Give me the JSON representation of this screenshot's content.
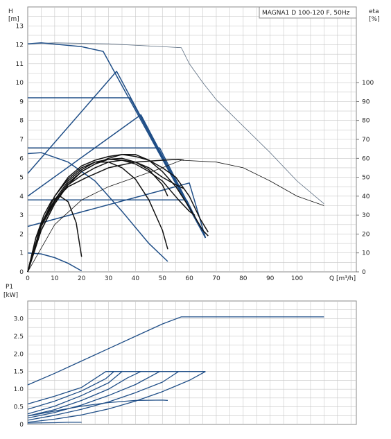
{
  "chart_data": [
    {
      "type": "line",
      "panel": "pump-curves",
      "title": "MAGNA1 D 100-120 F, 50Hz",
      "xlabel": "Q [m³/h]",
      "ylabel_line1": "H",
      "ylabel_line2": "[m]",
      "y2label_line1": "eta",
      "y2label_line2": "[%]",
      "xlim": [
        0,
        122
      ],
      "ylim": [
        0,
        14
      ],
      "y2lim": [
        0,
        140
      ],
      "xticks": [
        0,
        10,
        20,
        30,
        40,
        50,
        60,
        70,
        80,
        90,
        100
      ],
      "yticks": [
        0,
        1,
        2,
        3,
        4,
        5,
        6,
        7,
        8,
        9,
        10,
        11,
        12,
        13
      ],
      "y2ticks": [
        0,
        10,
        20,
        30,
        40,
        50,
        60,
        70,
        80,
        90,
        100
      ],
      "grid": true,
      "colors": {
        "head": "#1f4e87",
        "eta": "#111111",
        "twin": "#5a6c80",
        "grid": "#c8c8c8"
      },
      "head_curves": [
        {
          "points": [
            [
              0,
              12.05
            ],
            [
              5,
              12.1
            ],
            [
              20,
              11.9
            ],
            [
              28,
              11.65
            ],
            [
              66,
              1.8
            ]
          ]
        },
        {
          "points": [
            [
              0,
              9.2
            ],
            [
              38,
              9.2
            ],
            [
              66,
              1.8
            ]
          ]
        },
        {
          "points": [
            [
              0,
              6.55
            ],
            [
              49,
              6.55
            ],
            [
              66,
              1.8
            ]
          ]
        },
        {
          "points": [
            [
              0,
              3.8
            ],
            [
              59,
              3.8
            ],
            [
              66,
              1.8
            ]
          ]
        },
        {
          "points": [
            [
              0,
              5.2
            ],
            [
              33,
              10.6
            ],
            [
              66,
              1.8
            ]
          ]
        },
        {
          "points": [
            [
              0,
              4.0
            ],
            [
              42,
              8.3
            ],
            [
              66,
              1.8
            ]
          ]
        },
        {
          "points": [
            [
              0,
              2.4
            ],
            [
              60,
              4.7
            ],
            [
              66,
              1.8
            ]
          ]
        },
        {
          "points": [
            [
              0,
              6.25
            ],
            [
              5,
              6.3
            ],
            [
              15,
              5.8
            ],
            [
              25,
              4.8
            ],
            [
              35,
              3.2
            ],
            [
              45,
              1.5
            ],
            [
              52,
              0.55
            ]
          ]
        },
        {
          "points": [
            [
              0,
              1.0
            ],
            [
              5,
              0.95
            ],
            [
              10,
              0.75
            ],
            [
              15,
              0.45
            ],
            [
              20,
              0.05
            ]
          ]
        }
      ],
      "eta_curves": [
        {
          "points": [
            [
              0,
              0
            ],
            [
              3,
              18
            ],
            [
              6,
              28
            ],
            [
              10,
              38
            ],
            [
              15,
              45
            ],
            [
              22,
              50
            ],
            [
              30,
              55
            ],
            [
              40,
              58
            ],
            [
              50,
              59
            ],
            [
              56,
              59.5
            ],
            [
              58,
              59
            ]
          ]
        },
        {
          "points": [
            [
              0,
              0
            ],
            [
              5,
              25
            ],
            [
              10,
              40
            ],
            [
              15,
              50
            ],
            [
              20,
              56
            ],
            [
              25,
              59
            ],
            [
              30,
              61
            ],
            [
              35,
              62
            ],
            [
              40,
              61
            ],
            [
              45,
              59
            ],
            [
              50,
              55
            ],
            [
              55,
              50
            ],
            [
              60,
              40
            ],
            [
              64,
              28
            ],
            [
              67,
              21
            ]
          ]
        },
        {
          "points": [
            [
              0,
              0
            ],
            [
              5,
              22
            ],
            [
              10,
              36
            ],
            [
              15,
              46
            ],
            [
              20,
              53
            ],
            [
              25,
              57
            ],
            [
              30,
              60
            ],
            [
              35,
              62
            ],
            [
              40,
              62
            ],
            [
              45,
              59
            ],
            [
              50,
              53
            ],
            [
              55,
              45
            ],
            [
              60,
              34
            ],
            [
              65,
              22
            ],
            [
              67,
              19
            ]
          ]
        },
        {
          "points": [
            [
              0,
              0
            ],
            [
              5,
              24
            ],
            [
              10,
              38
            ],
            [
              15,
              48
            ],
            [
              20,
              54
            ],
            [
              25,
              58
            ],
            [
              30,
              59.5
            ],
            [
              35,
              59
            ],
            [
              40,
              57
            ],
            [
              45,
              53
            ],
            [
              50,
              48
            ],
            [
              53,
              43
            ],
            [
              56,
              38
            ],
            [
              60,
              32
            ],
            [
              62,
              30
            ]
          ]
        },
        {
          "points": [
            [
              0,
              0
            ],
            [
              5,
              22
            ],
            [
              10,
              36
            ],
            [
              15,
              46
            ],
            [
              20,
              51
            ],
            [
              25,
              55
            ],
            [
              30,
              58
            ],
            [
              35,
              59
            ],
            [
              40,
              58
            ],
            [
              45,
              55
            ],
            [
              50,
              50
            ],
            [
              55,
              46
            ],
            [
              58,
              44
            ]
          ]
        },
        {
          "points": [
            [
              0,
              0
            ],
            [
              5,
              24
            ],
            [
              10,
              37
            ],
            [
              15,
              47
            ],
            [
              20,
              53
            ],
            [
              25,
              57
            ],
            [
              30,
              59.5
            ],
            [
              35,
              60
            ],
            [
              40,
              58
            ],
            [
              45,
              54
            ],
            [
              50,
              46
            ],
            [
              52,
              40
            ]
          ]
        },
        {
          "points": [
            [
              0,
              0
            ],
            [
              5,
              25
            ],
            [
              10,
              40
            ],
            [
              15,
              49
            ],
            [
              20,
              55
            ],
            [
              25,
              58
            ],
            [
              30,
              58
            ],
            [
              35,
              55
            ],
            [
              40,
              49
            ],
            [
              45,
              38
            ],
            [
              50,
              22
            ],
            [
              52,
              12
            ]
          ]
        },
        {
          "points": [
            [
              0,
              0
            ],
            [
              3,
              18
            ],
            [
              6,
              30
            ],
            [
              9,
              38
            ],
            [
              12,
              40
            ],
            [
              15,
              37
            ],
            [
              18,
              26
            ],
            [
              20,
              8
            ]
          ]
        },
        {
          "points": [
            [
              0,
              0
            ],
            [
              10,
              25
            ],
            [
              20,
              38
            ],
            [
              30,
              45
            ],
            [
              40,
              50
            ],
            [
              50,
              55
            ],
            [
              57,
              59
            ],
            [
              70,
              58
            ],
            [
              80,
              55
            ],
            [
              90,
              48
            ],
            [
              100,
              40
            ],
            [
              110,
              35
            ]
          ]
        }
      ],
      "twin_curve": {
        "points": [
          [
            0,
            12.05
          ],
          [
            10,
            12.1
          ],
          [
            30,
            12.05
          ],
          [
            57,
            11.85
          ],
          [
            60,
            11.0
          ],
          [
            65,
            10.0
          ],
          [
            70,
            9.1
          ],
          [
            80,
            7.7
          ],
          [
            90,
            6.3
          ],
          [
            100,
            4.8
          ],
          [
            110,
            3.6
          ]
        ]
      }
    },
    {
      "type": "line",
      "panel": "power-curves",
      "ylabel_line1": "P1",
      "ylabel_line2": "[kW]",
      "xlim": [
        0,
        122
      ],
      "ylim": [
        0,
        3.5
      ],
      "yticks": [
        0,
        0.5,
        1.0,
        1.5,
        2.0,
        2.5,
        3.0
      ],
      "ytick_labels": [
        "0",
        "0.5",
        "1.0",
        "1.5",
        "2.0",
        "2.5",
        "3.0"
      ],
      "grid": true,
      "power_curves": [
        {
          "points": [
            [
              0,
              0.58
            ],
            [
              10,
              0.8
            ],
            [
              20,
              1.05
            ],
            [
              29,
              1.5
            ],
            [
              66,
              1.5
            ]
          ]
        },
        {
          "points": [
            [
              0,
              0.43
            ],
            [
              10,
              0.66
            ],
            [
              20,
              0.95
            ],
            [
              29,
              1.3
            ],
            [
              32,
              1.5
            ]
          ]
        },
        {
          "points": [
            [
              0,
              0.3
            ],
            [
              10,
              0.52
            ],
            [
              20,
              0.82
            ],
            [
              30,
              1.18
            ],
            [
              35,
              1.5
            ]
          ]
        },
        {
          "points": [
            [
              0,
              0.24
            ],
            [
              10,
              0.42
            ],
            [
              20,
              0.68
            ],
            [
              30,
              1.0
            ],
            [
              37,
              1.32
            ],
            [
              42,
              1.5
            ]
          ]
        },
        {
          "points": [
            [
              0,
              0.18
            ],
            [
              10,
              0.34
            ],
            [
              20,
              0.55
            ],
            [
              30,
              0.82
            ],
            [
              40,
              1.13
            ],
            [
              49,
              1.5
            ]
          ]
        },
        {
          "points": [
            [
              0,
              0.12
            ],
            [
              10,
              0.26
            ],
            [
              20,
              0.43
            ],
            [
              30,
              0.64
            ],
            [
              40,
              0.9
            ],
            [
              50,
              1.2
            ],
            [
              56,
              1.5
            ]
          ]
        },
        {
          "points": [
            [
              0,
              0.06
            ],
            [
              10,
              0.15
            ],
            [
              20,
              0.27
            ],
            [
              30,
              0.44
            ],
            [
              40,
              0.66
            ],
            [
              50,
              0.93
            ],
            [
              60,
              1.25
            ],
            [
              66,
              1.5
            ]
          ]
        },
        {
          "points": [
            [
              0,
              0.24
            ],
            [
              10,
              0.38
            ],
            [
              20,
              0.52
            ],
            [
              30,
              0.62
            ],
            [
              40,
              0.68
            ],
            [
              50,
              0.69
            ],
            [
              52,
              0.68
            ]
          ]
        },
        {
          "points": [
            [
              0,
              1.12
            ],
            [
              10,
              1.45
            ],
            [
              20,
              1.8
            ],
            [
              30,
              2.15
            ],
            [
              40,
              2.5
            ],
            [
              50,
              2.85
            ],
            [
              57,
              3.05
            ],
            [
              110,
              3.05
            ]
          ]
        },
        {
          "points": [
            [
              0,
              0.04
            ],
            [
              10,
              0.05
            ],
            [
              15,
              0.06
            ],
            [
              20,
              0.06
            ]
          ]
        }
      ]
    }
  ]
}
